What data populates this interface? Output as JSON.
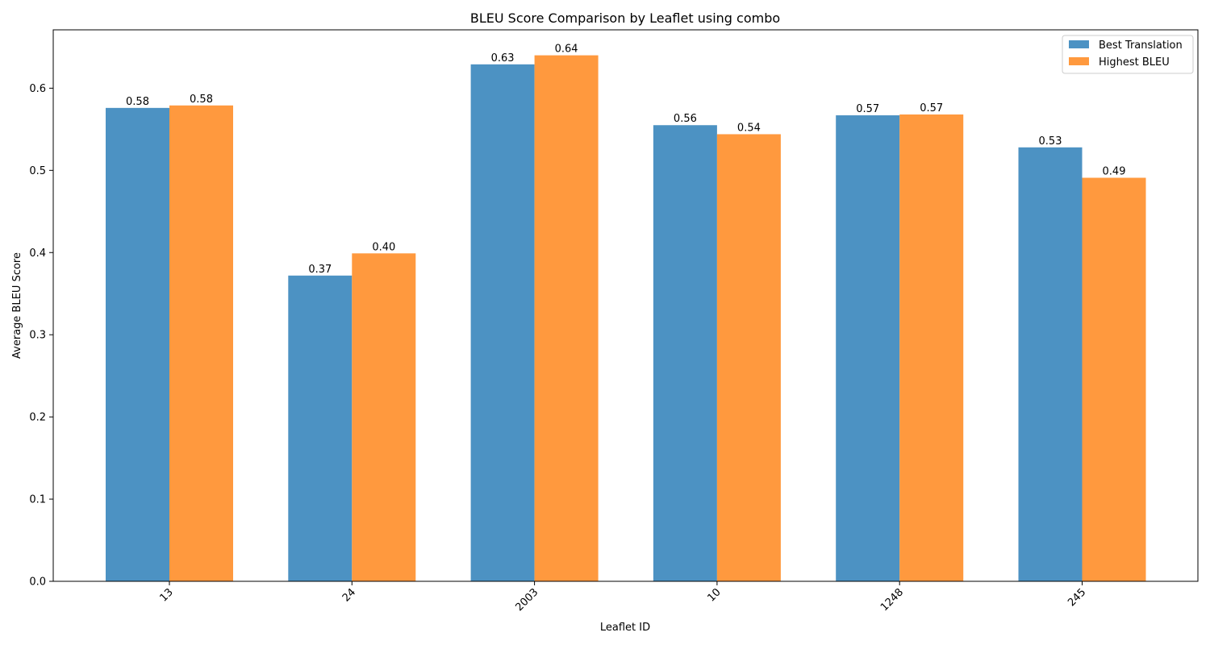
{
  "chart_data": {
    "type": "bar",
    "title": "BLEU Score Comparison by Leaflet using combo",
    "xlabel": "Leaflet ID",
    "ylabel": "Average BLEU Score",
    "categories": [
      "13",
      "24",
      "2003",
      "10",
      "1248",
      "245"
    ],
    "series": [
      {
        "name": "Best Translation",
        "color": "#4c92c3",
        "values": [
          0.576,
          0.372,
          0.629,
          0.555,
          0.567,
          0.528
        ],
        "labels": [
          "0.58",
          "0.37",
          "0.63",
          "0.56",
          "0.57",
          "0.53"
        ]
      },
      {
        "name": "Highest BLEU",
        "color": "#ff993e",
        "values": [
          0.579,
          0.399,
          0.64,
          0.544,
          0.568,
          0.491
        ],
        "labels": [
          "0.58",
          "0.40",
          "0.64",
          "0.54",
          "0.57",
          "0.49"
        ]
      }
    ],
    "ylim": [
      0,
      0.671
    ],
    "yticks": [
      "0.0",
      "0.1",
      "0.2",
      "0.3",
      "0.4",
      "0.5",
      "0.6"
    ],
    "xtick_rotation": 45,
    "grid": false,
    "legend_position": "top-right"
  }
}
